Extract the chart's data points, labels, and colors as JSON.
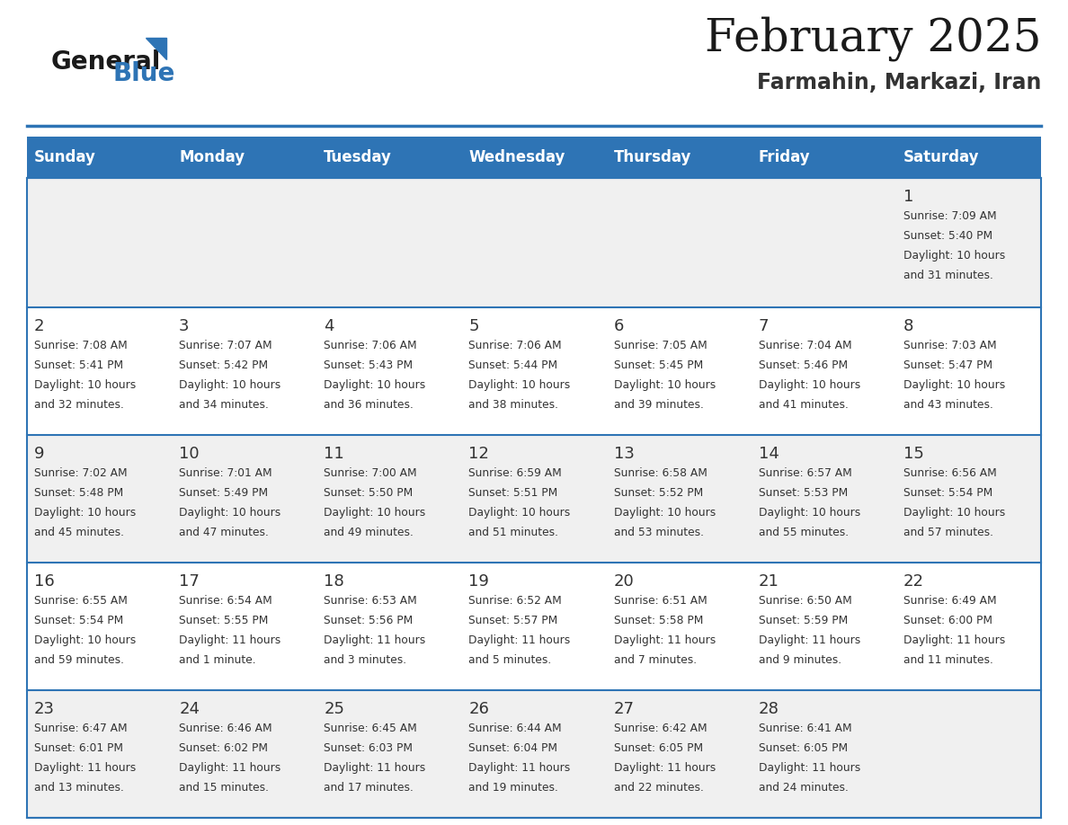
{
  "title": "February 2025",
  "subtitle": "Farmahin, Markazi, Iran",
  "header_bg": "#2E74B5",
  "header_text_color": "#FFFFFF",
  "days_of_week": [
    "Sunday",
    "Monday",
    "Tuesday",
    "Wednesday",
    "Thursday",
    "Friday",
    "Saturday"
  ],
  "row_bg_even": "#F0F0F0",
  "row_bg_odd": "#FFFFFF",
  "cell_text_color": "#333333",
  "separator_color": "#2E74B5",
  "logo_general_color": "#1a1a1a",
  "logo_blue_color": "#2E74B5",
  "logo_triangle_color": "#2E74B5",
  "title_color": "#1a1a1a",
  "subtitle_color": "#333333",
  "calendar_data": [
    [
      {
        "day": null,
        "sunrise": null,
        "sunset": null,
        "daylight_line1": null,
        "daylight_line2": null
      },
      {
        "day": null,
        "sunrise": null,
        "sunset": null,
        "daylight_line1": null,
        "daylight_line2": null
      },
      {
        "day": null,
        "sunrise": null,
        "sunset": null,
        "daylight_line1": null,
        "daylight_line2": null
      },
      {
        "day": null,
        "sunrise": null,
        "sunset": null,
        "daylight_line1": null,
        "daylight_line2": null
      },
      {
        "day": null,
        "sunrise": null,
        "sunset": null,
        "daylight_line1": null,
        "daylight_line2": null
      },
      {
        "day": null,
        "sunrise": null,
        "sunset": null,
        "daylight_line1": null,
        "daylight_line2": null
      },
      {
        "day": "1",
        "sunrise": "Sunrise: 7:09 AM",
        "sunset": "Sunset: 5:40 PM",
        "daylight_line1": "Daylight: 10 hours",
        "daylight_line2": "and 31 minutes."
      }
    ],
    [
      {
        "day": "2",
        "sunrise": "Sunrise: 7:08 AM",
        "sunset": "Sunset: 5:41 PM",
        "daylight_line1": "Daylight: 10 hours",
        "daylight_line2": "and 32 minutes."
      },
      {
        "day": "3",
        "sunrise": "Sunrise: 7:07 AM",
        "sunset": "Sunset: 5:42 PM",
        "daylight_line1": "Daylight: 10 hours",
        "daylight_line2": "and 34 minutes."
      },
      {
        "day": "4",
        "sunrise": "Sunrise: 7:06 AM",
        "sunset": "Sunset: 5:43 PM",
        "daylight_line1": "Daylight: 10 hours",
        "daylight_line2": "and 36 minutes."
      },
      {
        "day": "5",
        "sunrise": "Sunrise: 7:06 AM",
        "sunset": "Sunset: 5:44 PM",
        "daylight_line1": "Daylight: 10 hours",
        "daylight_line2": "and 38 minutes."
      },
      {
        "day": "6",
        "sunrise": "Sunrise: 7:05 AM",
        "sunset": "Sunset: 5:45 PM",
        "daylight_line1": "Daylight: 10 hours",
        "daylight_line2": "and 39 minutes."
      },
      {
        "day": "7",
        "sunrise": "Sunrise: 7:04 AM",
        "sunset": "Sunset: 5:46 PM",
        "daylight_line1": "Daylight: 10 hours",
        "daylight_line2": "and 41 minutes."
      },
      {
        "day": "8",
        "sunrise": "Sunrise: 7:03 AM",
        "sunset": "Sunset: 5:47 PM",
        "daylight_line1": "Daylight: 10 hours",
        "daylight_line2": "and 43 minutes."
      }
    ],
    [
      {
        "day": "9",
        "sunrise": "Sunrise: 7:02 AM",
        "sunset": "Sunset: 5:48 PM",
        "daylight_line1": "Daylight: 10 hours",
        "daylight_line2": "and 45 minutes."
      },
      {
        "day": "10",
        "sunrise": "Sunrise: 7:01 AM",
        "sunset": "Sunset: 5:49 PM",
        "daylight_line1": "Daylight: 10 hours",
        "daylight_line2": "and 47 minutes."
      },
      {
        "day": "11",
        "sunrise": "Sunrise: 7:00 AM",
        "sunset": "Sunset: 5:50 PM",
        "daylight_line1": "Daylight: 10 hours",
        "daylight_line2": "and 49 minutes."
      },
      {
        "day": "12",
        "sunrise": "Sunrise: 6:59 AM",
        "sunset": "Sunset: 5:51 PM",
        "daylight_line1": "Daylight: 10 hours",
        "daylight_line2": "and 51 minutes."
      },
      {
        "day": "13",
        "sunrise": "Sunrise: 6:58 AM",
        "sunset": "Sunset: 5:52 PM",
        "daylight_line1": "Daylight: 10 hours",
        "daylight_line2": "and 53 minutes."
      },
      {
        "day": "14",
        "sunrise": "Sunrise: 6:57 AM",
        "sunset": "Sunset: 5:53 PM",
        "daylight_line1": "Daylight: 10 hours",
        "daylight_line2": "and 55 minutes."
      },
      {
        "day": "15",
        "sunrise": "Sunrise: 6:56 AM",
        "sunset": "Sunset: 5:54 PM",
        "daylight_line1": "Daylight: 10 hours",
        "daylight_line2": "and 57 minutes."
      }
    ],
    [
      {
        "day": "16",
        "sunrise": "Sunrise: 6:55 AM",
        "sunset": "Sunset: 5:54 PM",
        "daylight_line1": "Daylight: 10 hours",
        "daylight_line2": "and 59 minutes."
      },
      {
        "day": "17",
        "sunrise": "Sunrise: 6:54 AM",
        "sunset": "Sunset: 5:55 PM",
        "daylight_line1": "Daylight: 11 hours",
        "daylight_line2": "and 1 minute."
      },
      {
        "day": "18",
        "sunrise": "Sunrise: 6:53 AM",
        "sunset": "Sunset: 5:56 PM",
        "daylight_line1": "Daylight: 11 hours",
        "daylight_line2": "and 3 minutes."
      },
      {
        "day": "19",
        "sunrise": "Sunrise: 6:52 AM",
        "sunset": "Sunset: 5:57 PM",
        "daylight_line1": "Daylight: 11 hours",
        "daylight_line2": "and 5 minutes."
      },
      {
        "day": "20",
        "sunrise": "Sunrise: 6:51 AM",
        "sunset": "Sunset: 5:58 PM",
        "daylight_line1": "Daylight: 11 hours",
        "daylight_line2": "and 7 minutes."
      },
      {
        "day": "21",
        "sunrise": "Sunrise: 6:50 AM",
        "sunset": "Sunset: 5:59 PM",
        "daylight_line1": "Daylight: 11 hours",
        "daylight_line2": "and 9 minutes."
      },
      {
        "day": "22",
        "sunrise": "Sunrise: 6:49 AM",
        "sunset": "Sunset: 6:00 PM",
        "daylight_line1": "Daylight: 11 hours",
        "daylight_line2": "and 11 minutes."
      }
    ],
    [
      {
        "day": "23",
        "sunrise": "Sunrise: 6:47 AM",
        "sunset": "Sunset: 6:01 PM",
        "daylight_line1": "Daylight: 11 hours",
        "daylight_line2": "and 13 minutes."
      },
      {
        "day": "24",
        "sunrise": "Sunrise: 6:46 AM",
        "sunset": "Sunset: 6:02 PM",
        "daylight_line1": "Daylight: 11 hours",
        "daylight_line2": "and 15 minutes."
      },
      {
        "day": "25",
        "sunrise": "Sunrise: 6:45 AM",
        "sunset": "Sunset: 6:03 PM",
        "daylight_line1": "Daylight: 11 hours",
        "daylight_line2": "and 17 minutes."
      },
      {
        "day": "26",
        "sunrise": "Sunrise: 6:44 AM",
        "sunset": "Sunset: 6:04 PM",
        "daylight_line1": "Daylight: 11 hours",
        "daylight_line2": "and 19 minutes."
      },
      {
        "day": "27",
        "sunrise": "Sunrise: 6:42 AM",
        "sunset": "Sunset: 6:05 PM",
        "daylight_line1": "Daylight: 11 hours",
        "daylight_line2": "and 22 minutes."
      },
      {
        "day": "28",
        "sunrise": "Sunrise: 6:41 AM",
        "sunset": "Sunset: 6:05 PM",
        "daylight_line1": "Daylight: 11 hours",
        "daylight_line2": "and 24 minutes."
      },
      {
        "day": null,
        "sunrise": null,
        "sunset": null,
        "daylight_line1": null,
        "daylight_line2": null
      }
    ]
  ]
}
